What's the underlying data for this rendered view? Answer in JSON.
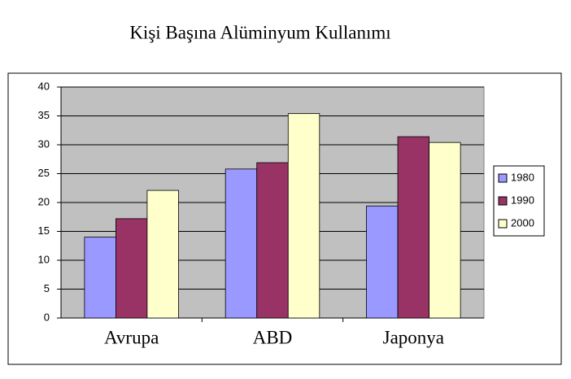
{
  "chart_data": {
    "type": "bar",
    "title": "Kişi Başına Alüminyum Kullanımı",
    "categories": [
      "Avrupa",
      "ABD",
      "Japonya"
    ],
    "series": [
      {
        "name": "1980",
        "color": "#9999ff",
        "values": [
          14,
          25.8,
          19.4
        ]
      },
      {
        "name": "1990",
        "color": "#993366",
        "values": [
          17.2,
          26.9,
          31.4
        ]
      },
      {
        "name": "2000",
        "color": "#ffffcc",
        "values": [
          22.1,
          35.4,
          30.4
        ]
      }
    ],
    "ylim": [
      0,
      40
    ],
    "yticks": [
      0,
      5,
      10,
      15,
      20,
      25,
      30,
      35,
      40
    ],
    "grid": true,
    "legend": "right"
  }
}
